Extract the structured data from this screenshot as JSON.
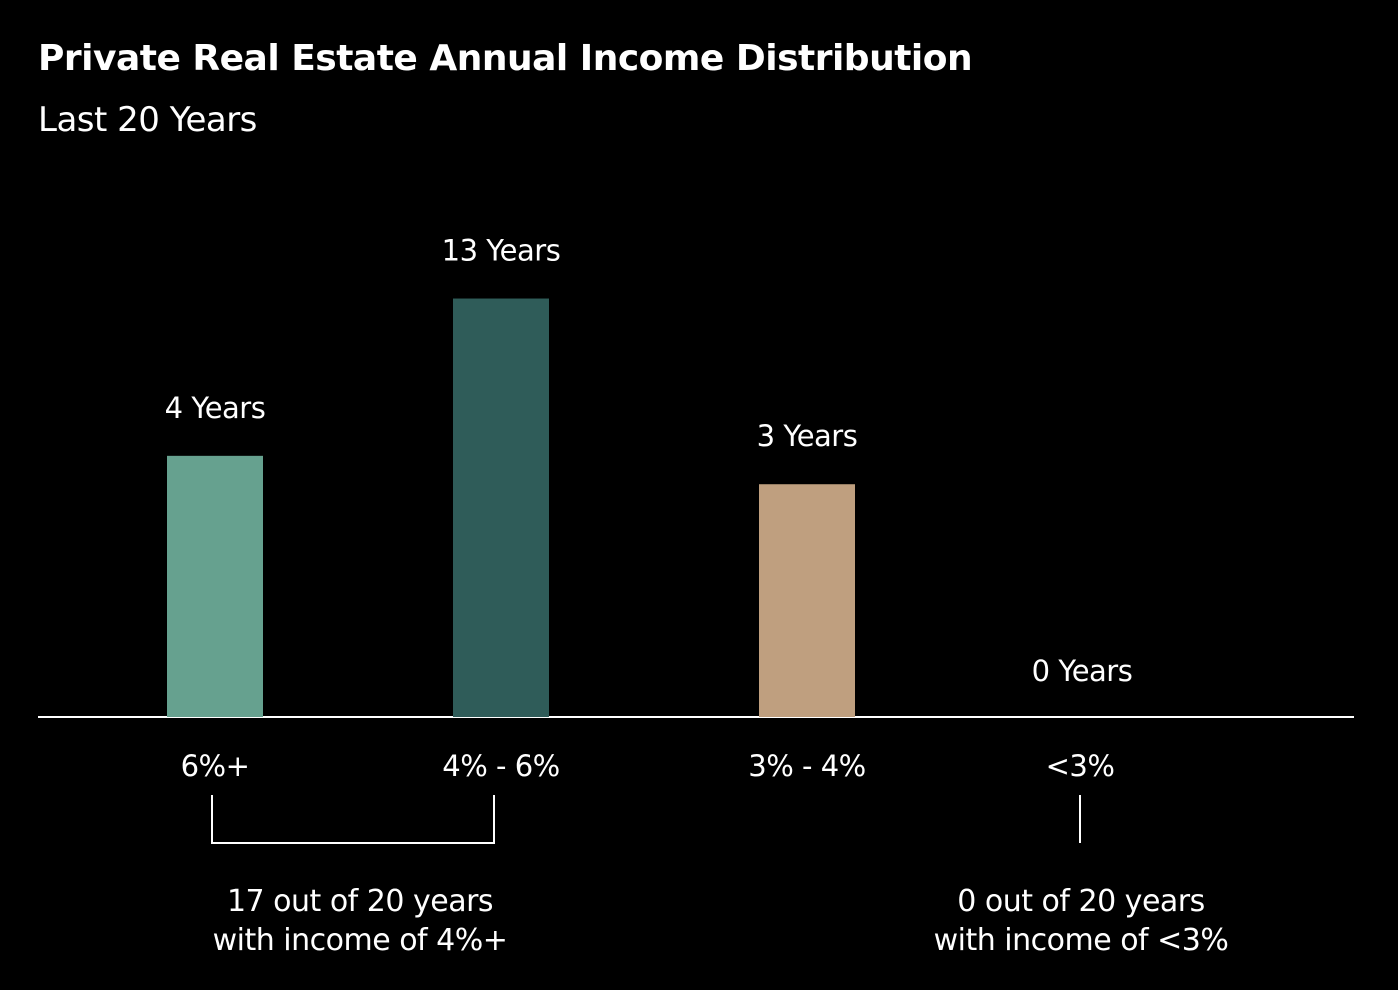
{
  "chart_data": {
    "type": "bar",
    "title": "Private Real Estate Annual Income Distribution",
    "subtitle": "Last 20 Years",
    "categories": [
      "6%+",
      "4% - 6%",
      "3% - 4%",
      "<3%"
    ],
    "values": [
      4,
      13,
      3,
      0
    ],
    "data_labels": [
      "4 Years",
      "13 Years",
      "3 Years",
      "0 Years"
    ],
    "colors": [
      "#66a18f",
      "#2f5c59",
      "#bf9f7f",
      "#ffffff"
    ],
    "xlabel": "",
    "ylabel": "",
    "grid": false,
    "annotations": [
      {
        "line1": "17 out of 20 years",
        "line2": "with income of 4%+"
      },
      {
        "line1": "0 out of 20 years",
        "line2": "with income of <3%"
      }
    ]
  }
}
